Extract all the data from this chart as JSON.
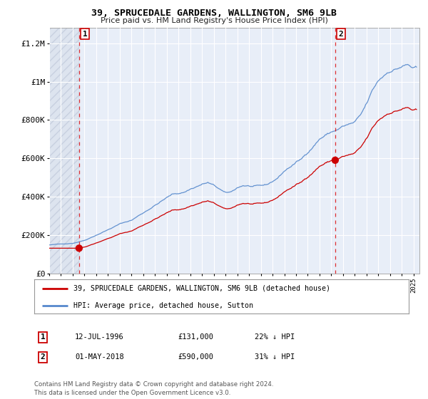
{
  "title": "39, SPRUCEDALE GARDENS, WALLINGTON, SM6 9LB",
  "subtitle": "Price paid vs. HM Land Registry's House Price Index (HPI)",
  "legend_line1": "39, SPRUCEDALE GARDENS, WALLINGTON, SM6 9LB (detached house)",
  "legend_line2": "HPI: Average price, detached house, Sutton",
  "annotation1_date": "12-JUL-1996",
  "annotation1_price": "£131,000",
  "annotation1_hpi": "22% ↓ HPI",
  "annotation2_date": "01-MAY-2018",
  "annotation2_price": "£590,000",
  "annotation2_hpi": "31% ↓ HPI",
  "footer": "Contains HM Land Registry data © Crown copyright and database right 2024.\nThis data is licensed under the Open Government Licence v3.0.",
  "sale1_x": 1996.54,
  "sale1_y": 131000,
  "sale2_x": 2018.33,
  "sale2_y": 590000,
  "price_line_color": "#cc0000",
  "hpi_line_color": "#5588cc",
  "dashed_line_color": "#dd0000",
  "hatch_color": "#dde4ef",
  "bg_color": "#e8eef8",
  "ylim": [
    0,
    1280000
  ],
  "xlim_start": 1994.0,
  "xlim_end": 2025.5
}
